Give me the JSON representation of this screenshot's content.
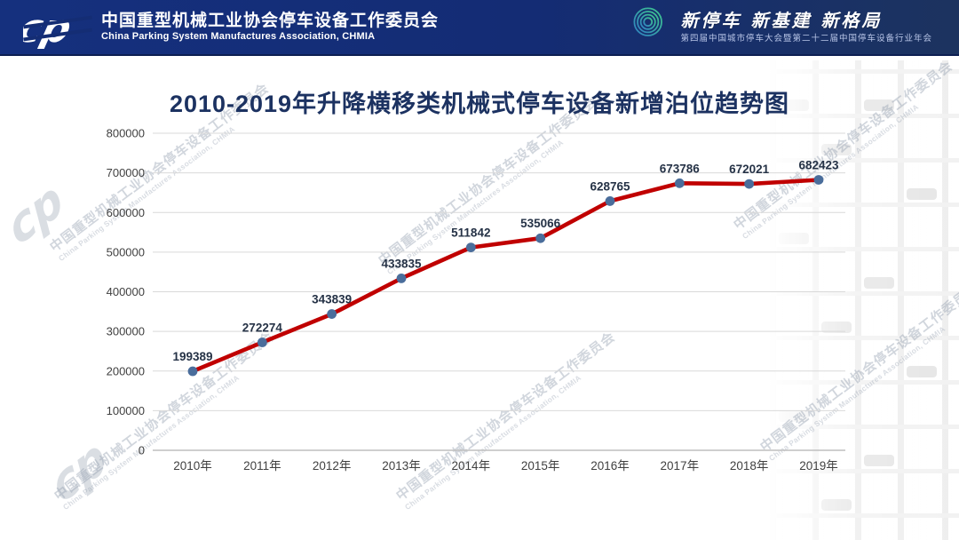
{
  "header": {
    "logo_glyph": "cp",
    "org_name_zh": "中国重型机械工业协会停车设备工作委员会",
    "org_name_en": "China Parking System Manufactures Association, CHMIA",
    "banner": {
      "slogan": "新停车  新基建  新格局",
      "subtitle": "第四届中国城市停车大会暨第二十二届中国停车设备行业年会"
    }
  },
  "chart_data": {
    "type": "line",
    "title": "2010-2019年升降横移类机械式停车设备新增泊位趋势图",
    "categories": [
      "2010年",
      "2011年",
      "2012年",
      "2013年",
      "2014年",
      "2015年",
      "2016年",
      "2017年",
      "2018年",
      "2019年"
    ],
    "values": [
      199389,
      272274,
      343839,
      433835,
      511842,
      535066,
      628765,
      673786,
      672021,
      682423
    ],
    "data_labels": [
      "199389",
      "272274",
      "343839",
      "433835",
      "511842",
      "535066",
      "628765",
      "673786",
      "672021",
      "682423"
    ],
    "xlabel": "",
    "ylabel": "",
    "ylim": [
      0,
      800000
    ],
    "yticks": [
      0,
      100000,
      200000,
      300000,
      400000,
      500000,
      600000,
      700000,
      800000
    ],
    "grid": true,
    "legend": "none",
    "line_color": "#c00000",
    "marker_color": "#4a6d9b",
    "label_color": "#253246",
    "axis_text_color": "#404040",
    "gridline_color": "#d9d9d9",
    "axis_line_color": "#bfbfbf"
  },
  "watermark": {
    "line1": "中国重型机械工业协会停车设备工作委员会",
    "line2": "China Parking System Manufactures Association, CHMIA",
    "logo_glyph": "cp"
  }
}
